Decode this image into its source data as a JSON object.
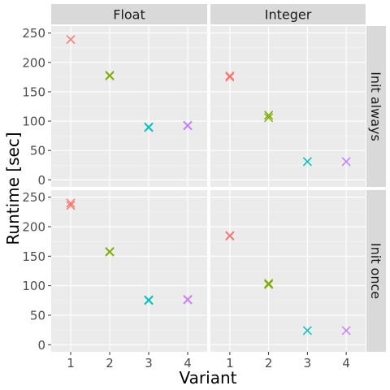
{
  "chart_data": {
    "type": "scatter",
    "marker": "x",
    "xlabel": "Variant",
    "ylabel": "Runtime [sec]",
    "x_ticks": [
      1,
      2,
      3,
      4
    ],
    "xlim": [
      0.5,
      4.5
    ],
    "ylim": [
      -12,
      262
    ],
    "y_ticks": [
      0,
      50,
      100,
      150,
      200,
      250
    ],
    "grid": true,
    "column_facets": [
      "Float",
      "Integer"
    ],
    "row_facets": [
      "Init always",
      "Init once"
    ],
    "variant_colors": {
      "1": "#F8766D",
      "2": "#7CAE00",
      "3": "#00BFC4",
      "4": "#C77CFF"
    },
    "panels": [
      {
        "column": "Float",
        "row": "Init always",
        "points": [
          {
            "x": 1,
            "y": 239
          },
          {
            "x": 2,
            "y": 178
          },
          {
            "x": 2,
            "y": 177
          },
          {
            "x": 3,
            "y": 90
          },
          {
            "x": 3,
            "y": 89
          },
          {
            "x": 4,
            "y": 93
          },
          {
            "x": 4,
            "y": 92
          }
        ]
      },
      {
        "column": "Integer",
        "row": "Init always",
        "points": [
          {
            "x": 1,
            "y": 177
          },
          {
            "x": 1,
            "y": 175
          },
          {
            "x": 2,
            "y": 110
          },
          {
            "x": 2,
            "y": 106
          },
          {
            "x": 3,
            "y": 31
          },
          {
            "x": 4,
            "y": 31
          }
        ]
      },
      {
        "column": "Float",
        "row": "Init once",
        "points": [
          {
            "x": 1,
            "y": 240
          },
          {
            "x": 1,
            "y": 236
          },
          {
            "x": 2,
            "y": 158
          },
          {
            "x": 2,
            "y": 157
          },
          {
            "x": 3,
            "y": 76
          },
          {
            "x": 3,
            "y": 75
          },
          {
            "x": 4,
            "y": 77
          },
          {
            "x": 4,
            "y": 76
          }
        ]
      },
      {
        "column": "Integer",
        "row": "Init once",
        "points": [
          {
            "x": 1,
            "y": 185
          },
          {
            "x": 1,
            "y": 184
          },
          {
            "x": 2,
            "y": 104
          },
          {
            "x": 2,
            "y": 102
          },
          {
            "x": 3,
            "y": 24
          },
          {
            "x": 4,
            "y": 24
          }
        ]
      }
    ]
  }
}
